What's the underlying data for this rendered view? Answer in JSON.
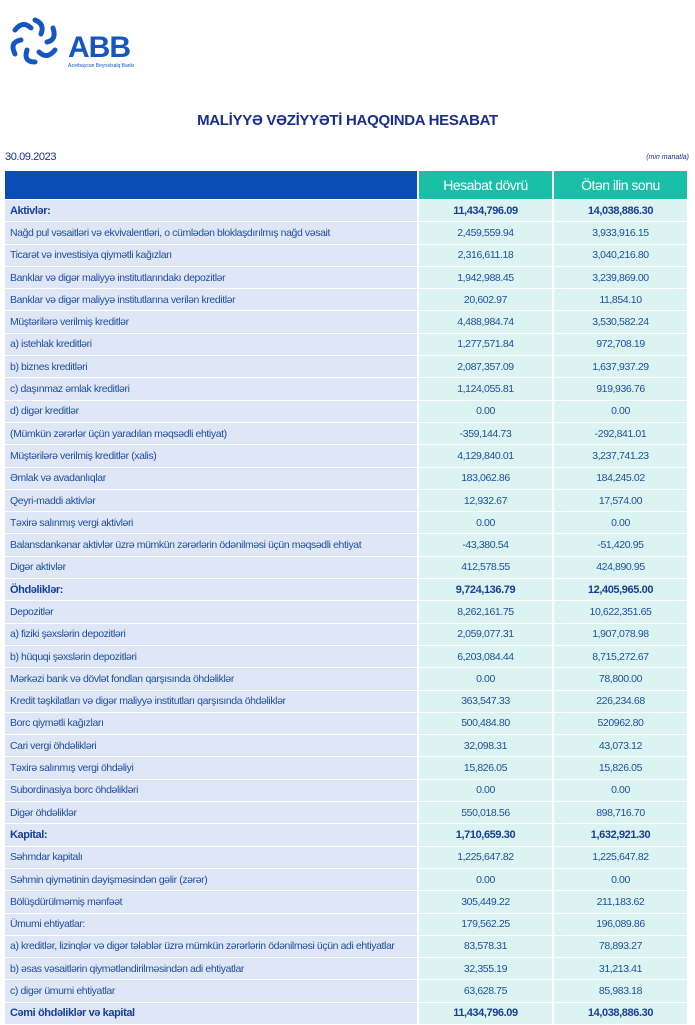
{
  "brand": {
    "name": "ABB",
    "subtitle": "Azərbaycan Beynəlxalq Bankı",
    "color": "#1556c0"
  },
  "report": {
    "title": "MALİYYƏ VƏZİYYƏTİ HAQQINDA HESABAT",
    "date": "30.09.2023",
    "unit": "(min manatla)"
  },
  "colors": {
    "header_blue": "#0a4db5",
    "header_teal": "#19bfa7",
    "label_bg": "#dfe7f6",
    "value_bg": "#dcf4f1"
  },
  "table": {
    "columns": [
      "Hesabat dövrü",
      "Ötən ilin sonu"
    ],
    "rows": [
      {
        "label": "Aktivlər:",
        "current": "11,434,796.09",
        "previous": "14,038,886.30",
        "bold": true
      },
      {
        "label": "Nağd pul vəsaitləri və  ekvivalentləri, o cümlədən bloklaşdırılmış nağd vəsait",
        "current": "2,459,559.94",
        "previous": "3,933,916.15"
      },
      {
        "label": "Ticarət və investisiya qiymətli kağızları",
        "current": "2,316,611.18",
        "previous": "3,040,216.80"
      },
      {
        "label": "Banklar və digər maliyyə institutlarındakı depozitlər",
        "current": "1,942,988.45",
        "previous": "3,239,869.00"
      },
      {
        "label": "Banklar və digər maliyyə institutlarına verilən kreditlər",
        "current": "20,602.97",
        "previous": "11,854.10"
      },
      {
        "label": "Müştərilərə verilmiş kreditlər",
        "current": "4,488,984.74",
        "previous": "3,530,582.24"
      },
      {
        "label": "a) istehlak kreditləri",
        "current": "1,277,571.84",
        "previous": "972,708.19"
      },
      {
        "label": "b) biznes kreditləri",
        "current": "2,087,357.09",
        "previous": "1,637,937.29"
      },
      {
        "label": "c) daşınmaz əmlak kreditləri",
        "current": "1,124,055.81",
        "previous": "919,936.76"
      },
      {
        "label": "d) digər kreditlər",
        "current": "0.00",
        "previous": "0.00"
      },
      {
        "label": "(Mümkün zərərlər üçün yaradılan məqsədli ehtiyat)",
        "current": "-359,144.73",
        "previous": "-292,841.01"
      },
      {
        "label": "Müştərilərə verilmiş kreditlər (xalis)",
        "current": "4,129,840.01",
        "previous": "3,237,741.23"
      },
      {
        "label": "Əmlak və avadanlıqlar",
        "current": "183,062.86",
        "previous": "184,245.02"
      },
      {
        "label": "Qeyri-maddi aktivlər",
        "current": "12,932.67",
        "previous": "17,574.00"
      },
      {
        "label": "Təxirə salınmış vergi aktivləri",
        "current": "0.00",
        "previous": "0.00"
      },
      {
        "label": "Balansdankənar aktivlər üzrə mümkün zərərlərin ödənilməsi üçün məqsədli ehtiyat",
        "current": "-43,380.54",
        "previous": "-51,420.95"
      },
      {
        "label": "Digər aktivlər",
        "current": "412,578.55",
        "previous": "424,890.95"
      },
      {
        "label": "Öhdəliklər:",
        "current": "9,724,136.79",
        "previous": "12,405,965.00",
        "bold": true
      },
      {
        "label": "Depozitlər",
        "current": "8,262,161.75",
        "previous": "10,622,351.65"
      },
      {
        "label": "a) fiziki şəxslərin depozitləri",
        "current": "2,059,077.31",
        "previous": "1,907,078.98"
      },
      {
        "label": "b) hüquqi şəxslərin depozitləri",
        "current": "6,203,084.44",
        "previous": "8,715,272.67"
      },
      {
        "label": "Mərkəzi bank və dövlət fondları qarşısında öhdəliklər",
        "current": "0.00",
        "previous": "78,800.00"
      },
      {
        "label": "Kredit təşkilatları və digər maliyyə institutları qarşısında öhdəliklər",
        "current": "363,547.33",
        "previous": "226,234.68"
      },
      {
        "label": "Borc qiymətli kağızları",
        "current": "500,484.80",
        "previous": "520962.80"
      },
      {
        "label": "Cari vergi öhdəlikləri",
        "current": "32,098.31",
        "previous": "43,073.12"
      },
      {
        "label": "Təxirə salınmış vergi öhdəliyi",
        "current": "15,826.05",
        "previous": "15,826.05"
      },
      {
        "label": "Subordinasiya borc öhdəlikləri",
        "current": "0.00",
        "previous": "0.00"
      },
      {
        "label": "Digər öhdəliklər",
        "current": "550,018.56",
        "previous": "898,716.70"
      },
      {
        "label": "Kapital:",
        "current": "1,710,659.30",
        "previous": "1,632,921.30",
        "bold": true
      },
      {
        "label": "Səhmdar kapitalı",
        "current": "1,225,647.82",
        "previous": "1,225,647.82"
      },
      {
        "label": "Səhmin qiymətinin dəyişməsindən gəlir (zərər)",
        "current": "0.00",
        "previous": "0.00"
      },
      {
        "label": "Bölüşdürülməmiş mənfəət",
        "current": "305,449.22",
        "previous": "211,183.62"
      },
      {
        "label": "Ümumi ehtiyatlar:",
        "current": "179,562.25",
        "previous": "196,089.86"
      },
      {
        "label": "a) kreditlər, lizinqlər və digər tələblər üzrə mümkün zərərlərin ödənilməsi üçün adi ehtiyatlar",
        "current": "83,578.31",
        "previous": "78,893.27"
      },
      {
        "label": "b) əsas vəsaitlərin qiymətləndirilməsindən adi ehtiyatlar",
        "current": "32,355.19",
        "previous": "31,213.41"
      },
      {
        "label": "c) digər ümumi ehtiyatlar",
        "current": "63,628.75",
        "previous": "85,983.18"
      },
      {
        "label": "Cəmi öhdəliklər və kapital",
        "current": "11,434,796.09",
        "previous": "14,038,886.30",
        "bold": true
      }
    ]
  }
}
